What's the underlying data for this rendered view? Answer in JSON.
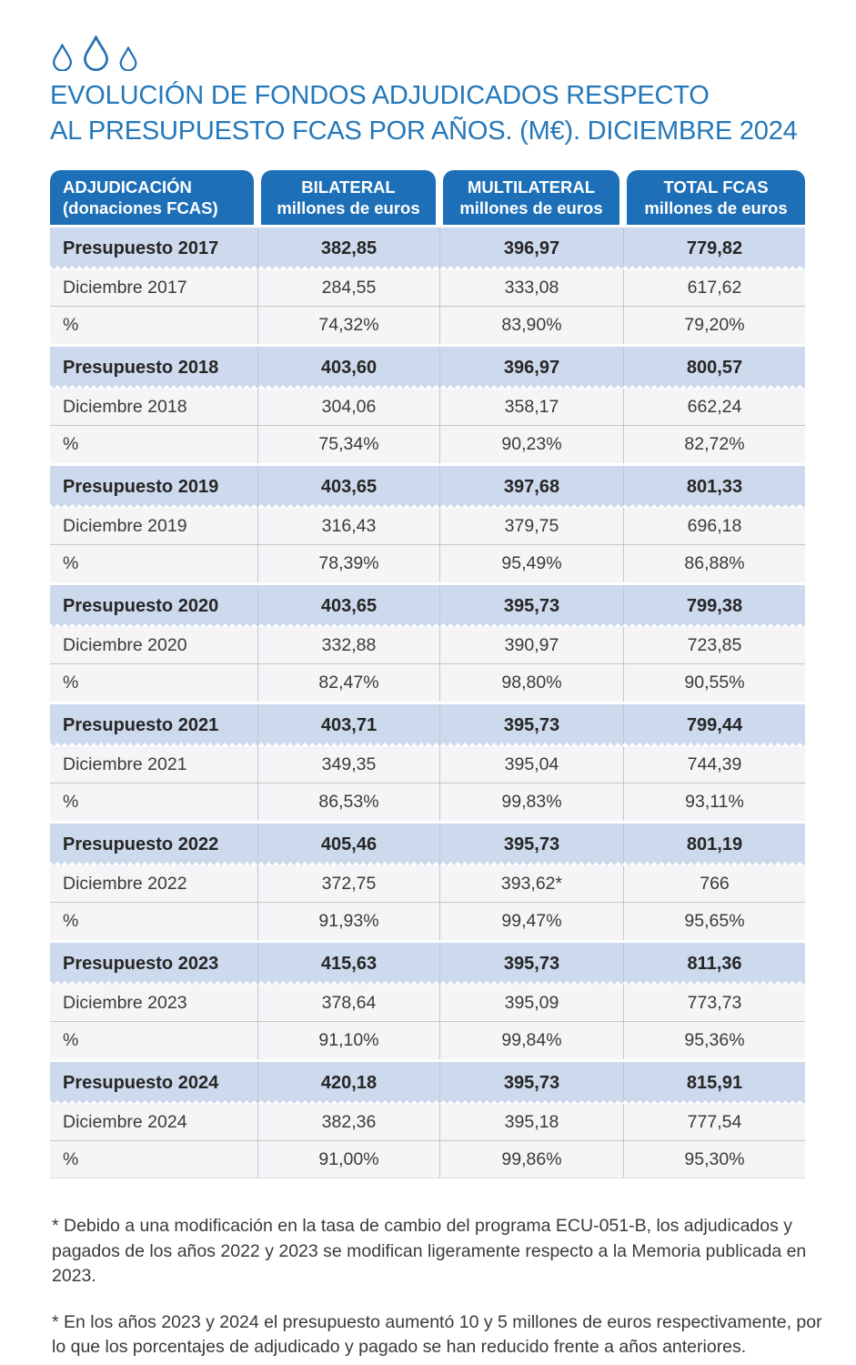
{
  "title": {
    "line1": "EVOLUCIÓN DE FONDOS ADJUDICADOS RESPECTO",
    "line2": "AL PRESUPUESTO FCAS POR AÑOS. (M€). DICIEMBRE 2024"
  },
  "colors": {
    "header_bg": "#1d70b7",
    "band_blue": "#cdd9ec",
    "band_gray": "#f5f5f7",
    "title_blue": "#2478ba",
    "drop_stroke": "#1f6fb5"
  },
  "logo": {
    "icon": "water-drop-icon",
    "count": 3
  },
  "table": {
    "header": [
      {
        "line1": "ADJUDICACIÓN",
        "line2": "(donaciones FCAS)"
      },
      {
        "line1": "BILATERAL",
        "line2": "millones de euros"
      },
      {
        "line1": "MULTILATERAL",
        "line2": "millones de euros"
      },
      {
        "line1": "TOTAL FCAS",
        "line2": "millones de euros"
      }
    ],
    "groups": [
      {
        "rows": [
          {
            "type": "presupuesto",
            "cells": [
              "Presupuesto 2017",
              "382,85",
              "396,97",
              "779,82"
            ]
          },
          {
            "type": "diciembre",
            "cells": [
              "Diciembre 2017",
              "284,55",
              "333,08",
              "617,62"
            ]
          },
          {
            "type": "pct",
            "cells": [
              "%",
              "74,32%",
              "83,90%",
              "79,20%"
            ]
          }
        ]
      },
      {
        "rows": [
          {
            "type": "presupuesto",
            "cells": [
              "Presupuesto 2018",
              "403,60",
              "396,97",
              "800,57"
            ]
          },
          {
            "type": "diciembre",
            "cells": [
              "Diciembre 2018",
              "304,06",
              "358,17",
              "662,24"
            ]
          },
          {
            "type": "pct",
            "cells": [
              "%",
              "75,34%",
              "90,23%",
              "82,72%"
            ]
          }
        ]
      },
      {
        "rows": [
          {
            "type": "presupuesto",
            "cells": [
              "Presupuesto 2019",
              "403,65",
              "397,68",
              "801,33"
            ]
          },
          {
            "type": "diciembre",
            "cells": [
              "Diciembre 2019",
              "316,43",
              "379,75",
              "696,18"
            ]
          },
          {
            "type": "pct",
            "cells": [
              "%",
              "78,39%",
              "95,49%",
              "86,88%"
            ]
          }
        ]
      },
      {
        "rows": [
          {
            "type": "presupuesto",
            "cells": [
              "Presupuesto 2020",
              "403,65",
              "395,73",
              "799,38"
            ]
          },
          {
            "type": "diciembre",
            "cells": [
              "Diciembre 2020",
              "332,88",
              "390,97",
              "723,85"
            ]
          },
          {
            "type": "pct",
            "cells": [
              "%",
              "82,47%",
              "98,80%",
              "90,55%"
            ]
          }
        ]
      },
      {
        "rows": [
          {
            "type": "presupuesto",
            "cells": [
              "Presupuesto 2021",
              "403,71",
              "395,73",
              "799,44"
            ]
          },
          {
            "type": "diciembre",
            "cells": [
              "Diciembre 2021",
              "349,35",
              "395,04",
              "744,39"
            ]
          },
          {
            "type": "pct",
            "cells": [
              "%",
              "86,53%",
              "99,83%",
              "93,11%"
            ]
          }
        ]
      },
      {
        "rows": [
          {
            "type": "presupuesto",
            "cells": [
              "Presupuesto 2022",
              "405,46",
              "395,73",
              "801,19"
            ]
          },
          {
            "type": "diciembre",
            "cells": [
              "Diciembre 2022",
              "372,75",
              "393,62*",
              "766"
            ]
          },
          {
            "type": "pct",
            "cells": [
              "%",
              "91,93%",
              "99,47%",
              "95,65%"
            ]
          }
        ]
      },
      {
        "rows": [
          {
            "type": "presupuesto",
            "cells": [
              "Presupuesto 2023",
              "415,63",
              "395,73",
              "811,36"
            ]
          },
          {
            "type": "diciembre",
            "cells": [
              "Diciembre 2023",
              "378,64",
              "395,09",
              "773,73"
            ]
          },
          {
            "type": "pct",
            "cells": [
              "%",
              "91,10%",
              "99,84%",
              "95,36%"
            ]
          }
        ]
      },
      {
        "rows": [
          {
            "type": "presupuesto",
            "cells": [
              "Presupuesto 2024",
              "420,18",
              "395,73",
              "815,91"
            ]
          },
          {
            "type": "diciembre",
            "cells": [
              "Diciembre 2024",
              "382,36",
              "395,18",
              "777,54"
            ]
          },
          {
            "type": "pct",
            "cells": [
              "%",
              "91,00%",
              "99,86%",
              "95,30%"
            ]
          }
        ]
      }
    ]
  },
  "footnotes": [
    "* Debido a una modificación en la tasa de cambio del programa ECU-051-B, los adjudicados y pagados de los años 2022 y 2023 se modifican ligeramente respecto a la Memoria publicada en 2023.",
    "* En los años 2023 y 2024 el presupuesto aumentó 10 y 5 millones de euros respectivamente, por lo que los porcentajes de adjudicado y pagado se han reducido frente a años anteriores."
  ]
}
